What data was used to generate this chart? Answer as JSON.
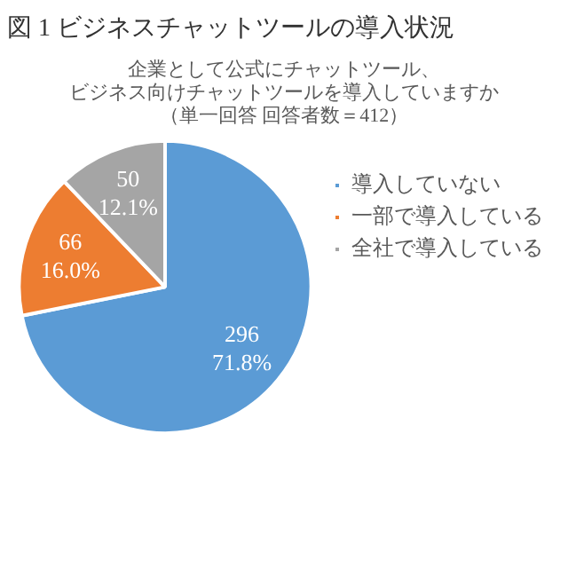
{
  "chart_data": {
    "type": "pie",
    "title": "図 1 ビジネスチャットツールの導入状況",
    "subtitle": "企業として公式にチャットツール、ビジネス向けチャットツールを導入していますか（単一回答 回答者数＝412）",
    "categories": [
      "導入していない",
      "一部で導入している",
      "全社で導入している"
    ],
    "values": [
      296,
      66,
      50
    ],
    "colors": [
      "#5b9bd5",
      "#ed7d31",
      "#a5a5a5"
    ],
    "value_labels": [
      "296\n71.8%",
      "66\n16.0%",
      "50\n12.1%"
    ],
    "legend": "right"
  }
}
